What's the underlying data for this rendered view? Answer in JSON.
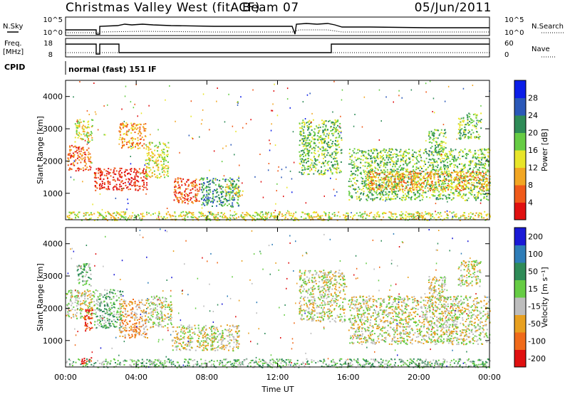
{
  "header": {
    "title": "Christmas Valley West (fitACF)",
    "beam": "Beam 07",
    "date": "05/Jun/2011"
  },
  "status_panel": {
    "nsky_label": "N.Sky",
    "nsearch_label": "N.Search",
    "freq_label_1": "Freq.",
    "freq_label_2": "[MHz]",
    "nave_label": "Nave",
    "cpid_label": "CPID",
    "cpid_text": "normal (fast) 151 IF",
    "noise_ticks": [
      "10^5",
      "10^0"
    ],
    "freq_ticks": [
      "18",
      "8"
    ],
    "nave_ticks": [
      "60",
      "0"
    ]
  },
  "chart_data": [
    {
      "type": "heatmap",
      "title": "",
      "xlabel": "Time UT",
      "ylabel": "Slant Range [km]",
      "xlim": [
        0,
        24
      ],
      "ylim": [
        180,
        4500
      ],
      "x_ticks": [
        "00:00",
        "04:00",
        "08:00",
        "12:00",
        "16:00",
        "20:00",
        "00:00"
      ],
      "y_ticks": [
        "1000",
        "2000",
        "3000",
        "4000"
      ],
      "colorbar": {
        "label": "Power [dB]",
        "ticks": [
          "4",
          "8",
          "12",
          "16",
          "20",
          "24",
          "28"
        ],
        "colors": [
          "#0b1ee8",
          "#2a58b8",
          "#2e8b57",
          "#66cc44",
          "#e8e52a",
          "#f2a623",
          "#f05a1a",
          "#e01010"
        ]
      },
      "regions": [
        {
          "t": [
            0.1,
            1.4
          ],
          "r": [
            1700,
            2500
          ],
          "level": 6
        },
        {
          "t": [
            0.5,
            1.5
          ],
          "r": [
            2600,
            3300
          ],
          "level": 4
        },
        {
          "t": [
            1.6,
            4.6
          ],
          "r": [
            1100,
            1800
          ],
          "level": 7
        },
        {
          "t": [
            3.0,
            4.5
          ],
          "r": [
            2400,
            3200
          ],
          "level": 5
        },
        {
          "t": [
            4.5,
            5.8
          ],
          "r": [
            1500,
            2600
          ],
          "level": 4
        },
        {
          "t": [
            6.1,
            7.6
          ],
          "r": [
            700,
            1500
          ],
          "level": 6
        },
        {
          "t": [
            7.6,
            9.8
          ],
          "r": [
            600,
            1500
          ],
          "level": 2
        },
        {
          "t": [
            9.0,
            10.0
          ],
          "r": [
            900,
            1300
          ],
          "level": 4
        },
        {
          "t": [
            13.2,
            15.6
          ],
          "r": [
            1600,
            3300
          ],
          "level": 3
        },
        {
          "t": [
            16.0,
            24.0
          ],
          "r": [
            800,
            2400
          ],
          "level": 3
        },
        {
          "t": [
            17.0,
            24.0
          ],
          "r": [
            1100,
            1700
          ],
          "level": 5
        },
        {
          "t": [
            20.5,
            21.5
          ],
          "r": [
            2300,
            3000
          ],
          "level": 3
        },
        {
          "t": [
            22.2,
            23.5
          ],
          "r": [
            2700,
            3500
          ],
          "level": 3
        },
        {
          "t": [
            0.0,
            24.0
          ],
          "r": [
            180,
            450
          ],
          "level": 4
        }
      ]
    },
    {
      "type": "heatmap",
      "title": "",
      "xlabel": "Time UT",
      "ylabel": "Slant Range [km]",
      "xlim": [
        0,
        24
      ],
      "ylim": [
        180,
        4500
      ],
      "x_ticks": [
        "00:00",
        "04:00",
        "08:00",
        "12:00",
        "16:00",
        "20:00",
        "00:00"
      ],
      "y_ticks": [
        "1000",
        "2000",
        "3000",
        "4000"
      ],
      "colorbar": {
        "label": "Velocity [m s⁻¹]",
        "ticks": [
          "200",
          "100",
          "50",
          "15",
          "-15",
          "-50",
          "-100",
          "-200"
        ],
        "colors": [
          "#1a1ad6",
          "#2e7db8",
          "#2e8b57",
          "#66cc44",
          "#bdbdbd",
          "#e8a020",
          "#f06a1a",
          "#e01010"
        ]
      },
      "regions": [
        {
          "t": [
            0.0,
            1.6
          ],
          "r": [
            1700,
            2600
          ],
          "level": 4
        },
        {
          "t": [
            0.6,
            1.4
          ],
          "r": [
            2700,
            3400
          ],
          "level": 3
        },
        {
          "t": [
            1.0,
            1.5
          ],
          "r": [
            1300,
            2000
          ],
          "level": 7
        },
        {
          "t": [
            1.6,
            3.2
          ],
          "r": [
            1400,
            2600
          ],
          "level": 3
        },
        {
          "t": [
            3.0,
            4.6
          ],
          "r": [
            1100,
            2300
          ],
          "level": 5
        },
        {
          "t": [
            4.6,
            6.0
          ],
          "r": [
            1400,
            2400
          ],
          "level": 4
        },
        {
          "t": [
            6.0,
            9.8
          ],
          "r": [
            700,
            1500
          ],
          "level": 4
        },
        {
          "t": [
            13.2,
            15.8
          ],
          "r": [
            1600,
            3200
          ],
          "level": 4
        },
        {
          "t": [
            16.0,
            24.0
          ],
          "r": [
            900,
            2400
          ],
          "level": 4
        },
        {
          "t": [
            20.5,
            21.5
          ],
          "r": [
            2300,
            3000
          ],
          "level": 4
        },
        {
          "t": [
            22.2,
            23.5
          ],
          "r": [
            2700,
            3500
          ],
          "level": 4
        },
        {
          "t": [
            0.0,
            24.0
          ],
          "r": [
            180,
            450
          ],
          "level": 3
        },
        {
          "t": [
            0.8,
            1.5
          ],
          "r": [
            300,
            500
          ],
          "level": 7
        }
      ]
    }
  ]
}
